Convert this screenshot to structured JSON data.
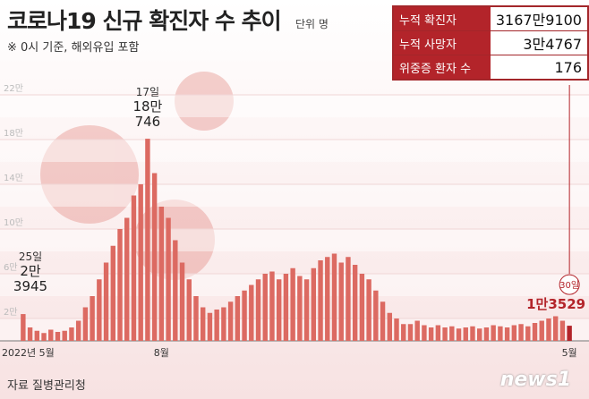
{
  "chart_data": {
    "type": "bar",
    "title": "코로나19 신규 확진자 수 추이",
    "unit": "단위 명",
    "subtitle": "※ 0시 기준, 해외유입 포함",
    "source": "자료 질병관리청",
    "logo": "news1",
    "color": "#dc6a62",
    "highlight_color": "#b3242a",
    "ylim": [
      0,
      240000
    ],
    "yticks": [
      {
        "value": 20000,
        "label": "2만"
      },
      {
        "value": 60000,
        "label": "6만"
      },
      {
        "value": 100000,
        "label": "10만"
      },
      {
        "value": 140000,
        "label": "14만"
      },
      {
        "value": 180000,
        "label": "18만"
      },
      {
        "value": 220000,
        "label": "22만"
      }
    ],
    "grid": true,
    "categories": [
      "2022년 5월",
      null,
      null,
      null,
      null,
      null,
      null,
      null,
      null,
      null,
      null,
      null,
      null,
      null,
      null,
      null,
      null,
      null,
      null,
      null,
      "8월",
      null,
      null,
      null,
      null,
      null,
      null,
      null,
      null,
      null,
      null,
      null,
      null,
      null,
      null,
      null,
      null,
      null,
      null,
      null,
      null,
      null,
      null,
      null,
      null,
      null,
      null,
      null,
      null,
      null,
      null,
      null,
      null,
      null,
      null,
      null,
      null,
      null,
      null,
      null,
      null,
      null,
      null,
      null,
      null,
      null,
      null,
      null,
      null,
      null,
      null,
      null,
      null,
      null,
      null,
      null,
      null,
      null,
      null,
      "5월"
    ],
    "values": [
      23945,
      12000,
      9000,
      7000,
      10000,
      8000,
      9000,
      12000,
      18000,
      30000,
      40000,
      55000,
      70000,
      85000,
      100000,
      110000,
      130000,
      140000,
      180746,
      150000,
      120000,
      110000,
      90000,
      70000,
      55000,
      40000,
      30000,
      25000,
      28000,
      30000,
      35000,
      40000,
      45000,
      50000,
      55000,
      60000,
      62000,
      55000,
      60000,
      65000,
      58000,
      55000,
      65000,
      72000,
      75000,
      78000,
      70000,
      75000,
      68000,
      60000,
      55000,
      45000,
      35000,
      25000,
      20000,
      15000,
      15000,
      18000,
      14000,
      12000,
      14000,
      12000,
      13000,
      11000,
      12000,
      13000,
      11000,
      12000,
      14000,
      13000,
      12000,
      14000,
      15000,
      13000,
      16000,
      18000,
      20000,
      22000,
      18000,
      13529
    ],
    "value_labels": [
      "2만\n3945",
      null,
      null,
      null,
      null,
      null,
      null,
      null,
      null,
      null,
      null,
      null,
      null,
      null,
      null,
      null,
      null,
      null,
      "18만\n746",
      null,
      null,
      null,
      null,
      null,
      null,
      null,
      null,
      null,
      null,
      null,
      null,
      null,
      null,
      null,
      null,
      null,
      null,
      null,
      null,
      null,
      null,
      null,
      null,
      null,
      null,
      null,
      null,
      null,
      null,
      null,
      null,
      null,
      null,
      null,
      null,
      null,
      null,
      null,
      null,
      null,
      null,
      null,
      null,
      null,
      null,
      null,
      null,
      null,
      null,
      null,
      null,
      null,
      null,
      null,
      null,
      null,
      null,
      null,
      null,
      "1만3529"
    ],
    "day_labels": [
      "25일",
      null,
      null,
      null,
      null,
      null,
      null,
      null,
      null,
      null,
      null,
      null,
      null,
      null,
      null,
      null,
      null,
      null,
      "17일",
      null,
      null,
      null,
      null,
      null,
      null,
      null,
      null,
      null,
      null,
      null,
      null,
      null,
      null,
      null,
      null,
      null,
      null,
      null,
      null,
      null,
      null,
      null,
      null,
      null,
      null,
      null,
      null,
      null,
      null,
      null,
      null,
      null,
      null,
      null,
      null,
      null,
      null,
      null,
      null,
      null,
      null,
      null,
      null,
      null,
      null,
      null,
      null,
      null,
      null,
      null,
      null,
      null,
      null,
      null,
      null,
      null,
      null,
      null,
      null,
      "30일"
    ]
  },
  "stats_box": {
    "rows": [
      [
        "누적 확진자",
        "3167만9100"
      ],
      [
        "누적 사망자",
        "3만4767"
      ],
      [
        "위중증 환자 수",
        "176"
      ]
    ]
  }
}
